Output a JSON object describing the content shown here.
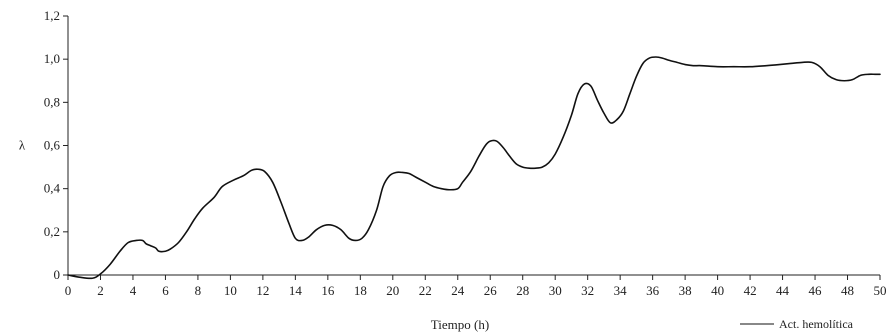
{
  "chart_data": {
    "type": "line",
    "xlabel": "Tiempo (h)",
    "ylabel": "λ",
    "xlim": [
      0,
      50
    ],
    "ylim": [
      0,
      1.2
    ],
    "x_ticks": [
      "0",
      "2",
      "4",
      "6",
      "8",
      "10",
      "12",
      "14",
      "16",
      "18",
      "20",
      "22",
      "24",
      "26",
      "28",
      "30",
      "32",
      "34",
      "36",
      "38",
      "40",
      "42",
      "44",
      "46",
      "48",
      "50"
    ],
    "y_ticks": [
      "0",
      "0,2",
      "0,4",
      "0,6",
      "0,8",
      "1,0",
      "1,2"
    ],
    "grid": false,
    "legend_position": "bottom-right",
    "series": [
      {
        "name": "Act. hemolítica",
        "color": "#111111",
        "x": [
          0,
          0.7,
          1.5,
          2,
          2.6,
          3.2,
          3.7,
          4.2,
          4.6,
          4.8,
          5.1,
          5.4,
          5.6,
          6,
          6.3,
          6.8,
          7.3,
          7.8,
          8.3,
          9,
          9.5,
          10.2,
          10.8,
          11.3,
          11.7,
          12.1,
          12.6,
          13.1,
          13.6,
          14,
          14.4,
          14.8,
          15.3,
          15.8,
          16.3,
          16.8,
          17.3,
          17.7,
          18.1,
          18.5,
          19,
          19.4,
          19.8,
          20.2,
          20.6,
          21,
          21.5,
          22,
          22.5,
          23,
          23.5,
          24,
          24.3,
          24.8,
          25.3,
          25.7,
          26,
          26.4,
          26.8,
          27.2,
          27.6,
          28,
          28.4,
          28.8,
          29.2,
          29.6,
          30,
          30.5,
          31,
          31.4,
          31.8,
          32.2,
          32.6,
          33,
          33.4,
          33.8,
          34.2,
          34.6,
          35,
          35.4,
          35.8,
          36.2,
          36.6,
          37,
          37.5,
          38,
          38.5,
          39,
          40,
          41,
          42,
          43,
          43.8,
          44.5,
          45.2,
          45.8,
          46.3,
          46.8,
          47.3,
          47.8,
          48.3,
          48.8,
          49.3,
          49.7,
          50
        ],
        "y": [
          0,
          -0.01,
          -0.015,
          0.005,
          0.05,
          0.11,
          0.15,
          0.16,
          0.16,
          0.145,
          0.135,
          0.125,
          0.11,
          0.11,
          0.12,
          0.15,
          0.2,
          0.26,
          0.31,
          0.36,
          0.41,
          0.44,
          0.46,
          0.485,
          0.49,
          0.48,
          0.43,
          0.34,
          0.24,
          0.17,
          0.16,
          0.175,
          0.21,
          0.23,
          0.23,
          0.21,
          0.17,
          0.16,
          0.17,
          0.21,
          0.3,
          0.41,
          0.46,
          0.475,
          0.475,
          0.47,
          0.45,
          0.43,
          0.41,
          0.4,
          0.395,
          0.4,
          0.43,
          0.48,
          0.55,
          0.6,
          0.62,
          0.62,
          0.59,
          0.55,
          0.515,
          0.5,
          0.495,
          0.495,
          0.5,
          0.52,
          0.56,
          0.64,
          0.74,
          0.84,
          0.885,
          0.875,
          0.81,
          0.75,
          0.705,
          0.72,
          0.76,
          0.84,
          0.92,
          0.98,
          1.005,
          1.01,
          1.005,
          0.995,
          0.985,
          0.975,
          0.97,
          0.97,
          0.965,
          0.965,
          0.965,
          0.97,
          0.975,
          0.98,
          0.985,
          0.985,
          0.965,
          0.925,
          0.905,
          0.9,
          0.905,
          0.925,
          0.93,
          0.93,
          0.93
        ]
      }
    ]
  }
}
